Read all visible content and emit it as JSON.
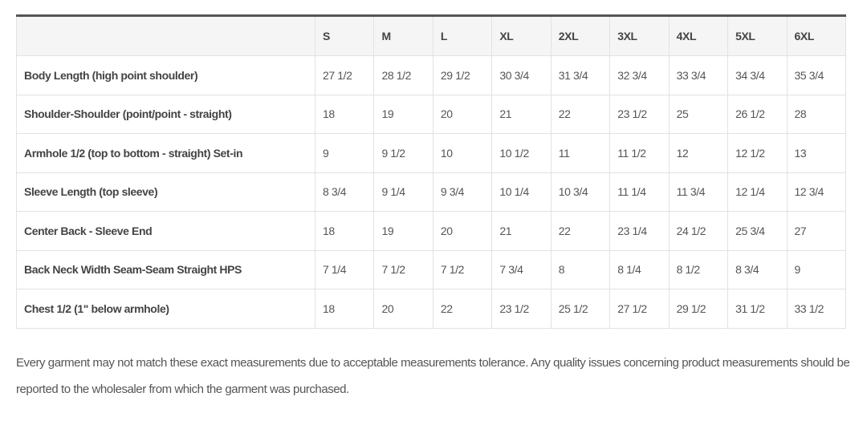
{
  "table": {
    "columns": [
      "",
      "S",
      "M",
      "L",
      "XL",
      "2XL",
      "3XL",
      "4XL",
      "5XL",
      "6XL"
    ],
    "rows": [
      {
        "label": "Body Length (high point shoulder)",
        "values": [
          "27 1/2",
          "28 1/2",
          "29 1/2",
          "30 3/4",
          "31 3/4",
          "32 3/4",
          "33 3/4",
          "34 3/4",
          "35 3/4"
        ]
      },
      {
        "label": "Shoulder-Shoulder (point/point - straight)",
        "values": [
          "18",
          "19",
          "20",
          "21",
          "22",
          "23 1/2",
          "25",
          "26 1/2",
          "28"
        ]
      },
      {
        "label": "Armhole 1/2 (top to bottom - straight) Set-in",
        "values": [
          "9",
          "9 1/2",
          "10",
          "10 1/2",
          "11",
          "11 1/2",
          "12",
          "12 1/2",
          "13"
        ]
      },
      {
        "label": "Sleeve Length (top sleeve)",
        "values": [
          "8 3/4",
          "9 1/4",
          "9 3/4",
          "10 1/4",
          "10 3/4",
          "11 1/4",
          "11 3/4",
          "12 1/4",
          "12 3/4"
        ]
      },
      {
        "label": "Center Back - Sleeve End",
        "values": [
          "18",
          "19",
          "20",
          "21",
          "22",
          "23 1/4",
          "24 1/2",
          "25 3/4",
          "27"
        ]
      },
      {
        "label": "Back Neck Width Seam-Seam Straight HPS",
        "values": [
          "7 1/4",
          "7 1/2",
          "7 1/2",
          "7 3/4",
          "8",
          "8 1/4",
          "8 1/2",
          "8 3/4",
          "9"
        ]
      },
      {
        "label": "Chest 1/2 (1\" below armhole)",
        "values": [
          "18",
          "20",
          "22",
          "23 1/2",
          "25 1/2",
          "27 1/2",
          "29 1/2",
          "31 1/2",
          "33 1/2"
        ]
      }
    ]
  },
  "note": "Every garment may not match these exact measurements due to acceptable measurements tolerance. Any quality issues concerning product measurements should be reported to the wholesaler from which the garment was purchased."
}
